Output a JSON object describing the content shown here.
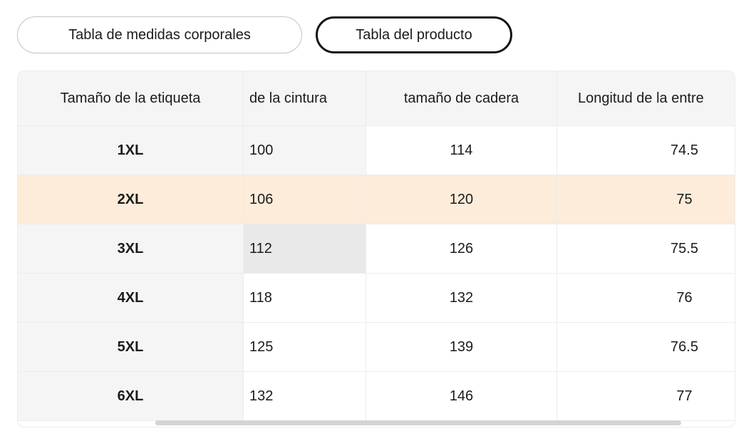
{
  "tabs": [
    {
      "label": "Tabla de medidas corporales",
      "selected": false
    },
    {
      "label": "Tabla del producto",
      "selected": true
    }
  ],
  "table": {
    "columns": [
      {
        "label": "Tamaño de la etiqueta"
      },
      {
        "label": "de la cintura"
      },
      {
        "label": "tamaño de cadera"
      },
      {
        "label": "Longitud de la entre"
      }
    ],
    "rows": [
      {
        "values": [
          "1XL",
          "100",
          "114",
          "74.5"
        ],
        "cell_bgs": [
          "gray",
          "gray",
          "white",
          "white"
        ]
      },
      {
        "values": [
          "2XL",
          "106",
          "120",
          "75"
        ],
        "cell_bgs": [
          "peach",
          "peach",
          "peach",
          "peach"
        ]
      },
      {
        "values": [
          "3XL",
          "112",
          "126",
          "75.5"
        ],
        "cell_bgs": [
          "gray",
          "grayDark",
          "white",
          "white"
        ]
      },
      {
        "values": [
          "4XL",
          "118",
          "132",
          "76"
        ],
        "cell_bgs": [
          "gray",
          "white",
          "white",
          "white"
        ]
      },
      {
        "values": [
          "5XL",
          "125",
          "139",
          "76.5"
        ],
        "cell_bgs": [
          "gray",
          "white",
          "white",
          "white"
        ]
      },
      {
        "values": [
          "6XL",
          "132",
          "146",
          "77"
        ],
        "cell_bgs": [
          "gray",
          "white",
          "white",
          "white"
        ]
      }
    ],
    "highlighted_row": "2XL",
    "selected_cell": {
      "row": "3XL",
      "value": "112"
    }
  },
  "scrollbar": {
    "orientation": "horizontal",
    "position": "partially-scrolled"
  },
  "colors": {
    "gray": "#f5f5f6",
    "grayDark": "#e9e9e9",
    "peach": "#fcecd9",
    "white": "#ffffff",
    "border": "#ececec",
    "tabBorder": "#c3c3c3",
    "tabBorderSelected": "#141414",
    "text": "#1b1b1b",
    "thumb": "#d4d4d4"
  }
}
